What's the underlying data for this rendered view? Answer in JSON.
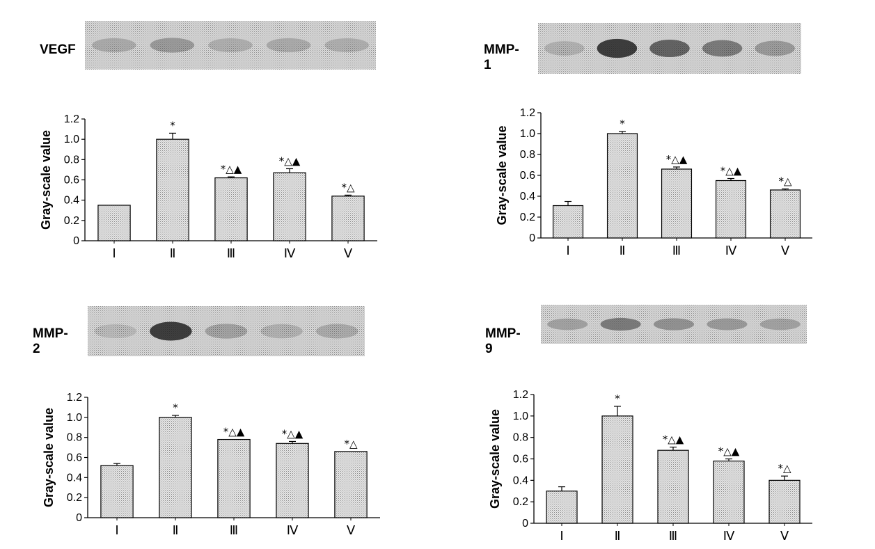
{
  "panels": [
    {
      "id": "vegf",
      "blot_label": "VEGF"
    },
    {
      "id": "mmp1",
      "blot_label": "MMP-1"
    },
    {
      "id": "mmp2",
      "blot_label": "MMP-2"
    },
    {
      "id": "mmp9",
      "blot_label": "MMP-9"
    }
  ],
  "chart_data": [
    {
      "type": "bar",
      "title": "",
      "blot": "VEGF",
      "ylabel": "Gray-scale value",
      "xlabel": "",
      "categories": [
        "Ⅰ",
        "Ⅱ",
        "Ⅲ",
        "Ⅳ",
        "Ⅴ"
      ],
      "values": [
        0.35,
        1.0,
        0.62,
        0.67,
        0.44
      ],
      "errors": [
        0.0,
        0.06,
        0.01,
        0.04,
        0.01
      ],
      "annotations": [
        "",
        "*",
        "*△▲",
        "*△▲",
        "*△"
      ],
      "ylim": [
        0,
        1.2
      ],
      "yticks": [
        "0",
        "0.2",
        "0.4",
        "0.6",
        "0.8",
        "1.0",
        "1.2"
      ]
    },
    {
      "type": "bar",
      "title": "",
      "blot": "MMP-1",
      "ylabel": "Gray-scale value",
      "xlabel": "",
      "categories": [
        "Ⅰ",
        "Ⅱ",
        "Ⅲ",
        "Ⅳ",
        "Ⅴ"
      ],
      "values": [
        0.31,
        1.0,
        0.66,
        0.55,
        0.46
      ],
      "errors": [
        0.04,
        0.02,
        0.02,
        0.02,
        0.01
      ],
      "annotations": [
        "",
        "*",
        "*△▲",
        "*△▲",
        "*△"
      ],
      "ylim": [
        0,
        1.2
      ],
      "yticks": [
        "0",
        "0.2",
        "0.4",
        "0.6",
        "0.8",
        "1.0",
        "1.2"
      ]
    },
    {
      "type": "bar",
      "title": "",
      "blot": "MMP-2",
      "ylabel": "Gray-scale value",
      "xlabel": "",
      "categories": [
        "Ⅰ",
        "Ⅱ",
        "Ⅲ",
        "Ⅳ",
        "Ⅴ"
      ],
      "values": [
        0.52,
        1.0,
        0.78,
        0.74,
        0.66
      ],
      "errors": [
        0.02,
        0.02,
        0.0,
        0.02,
        0.0
      ],
      "annotations": [
        "",
        "*",
        "*△▲",
        "*△▲",
        "*△"
      ],
      "ylim": [
        0,
        1.2
      ],
      "yticks": [
        "0",
        "0.2",
        "0.4",
        "0.6",
        "0.8",
        "1.0",
        "1.2"
      ]
    },
    {
      "type": "bar",
      "title": "",
      "blot": "MMP-9",
      "ylabel": "Gray-scale value",
      "xlabel": "",
      "categories": [
        "Ⅰ",
        "Ⅱ",
        "Ⅲ",
        "Ⅳ",
        "Ⅴ"
      ],
      "values": [
        0.3,
        1.0,
        0.68,
        0.58,
        0.4
      ],
      "errors": [
        0.04,
        0.09,
        0.03,
        0.02,
        0.04
      ],
      "annotations": [
        "",
        "*",
        "*△▲",
        "*△▲",
        "*△"
      ],
      "ylim": [
        0,
        1.2
      ],
      "yticks": [
        "0",
        "0.2",
        "0.4",
        "0.6",
        "0.8",
        "1.0",
        "1.2"
      ]
    }
  ],
  "colors": {
    "bar_fill": "#d4d4d4",
    "blot_bg": "#cfcfcf",
    "band": "#1a1a1a",
    "axis": "#000000"
  }
}
